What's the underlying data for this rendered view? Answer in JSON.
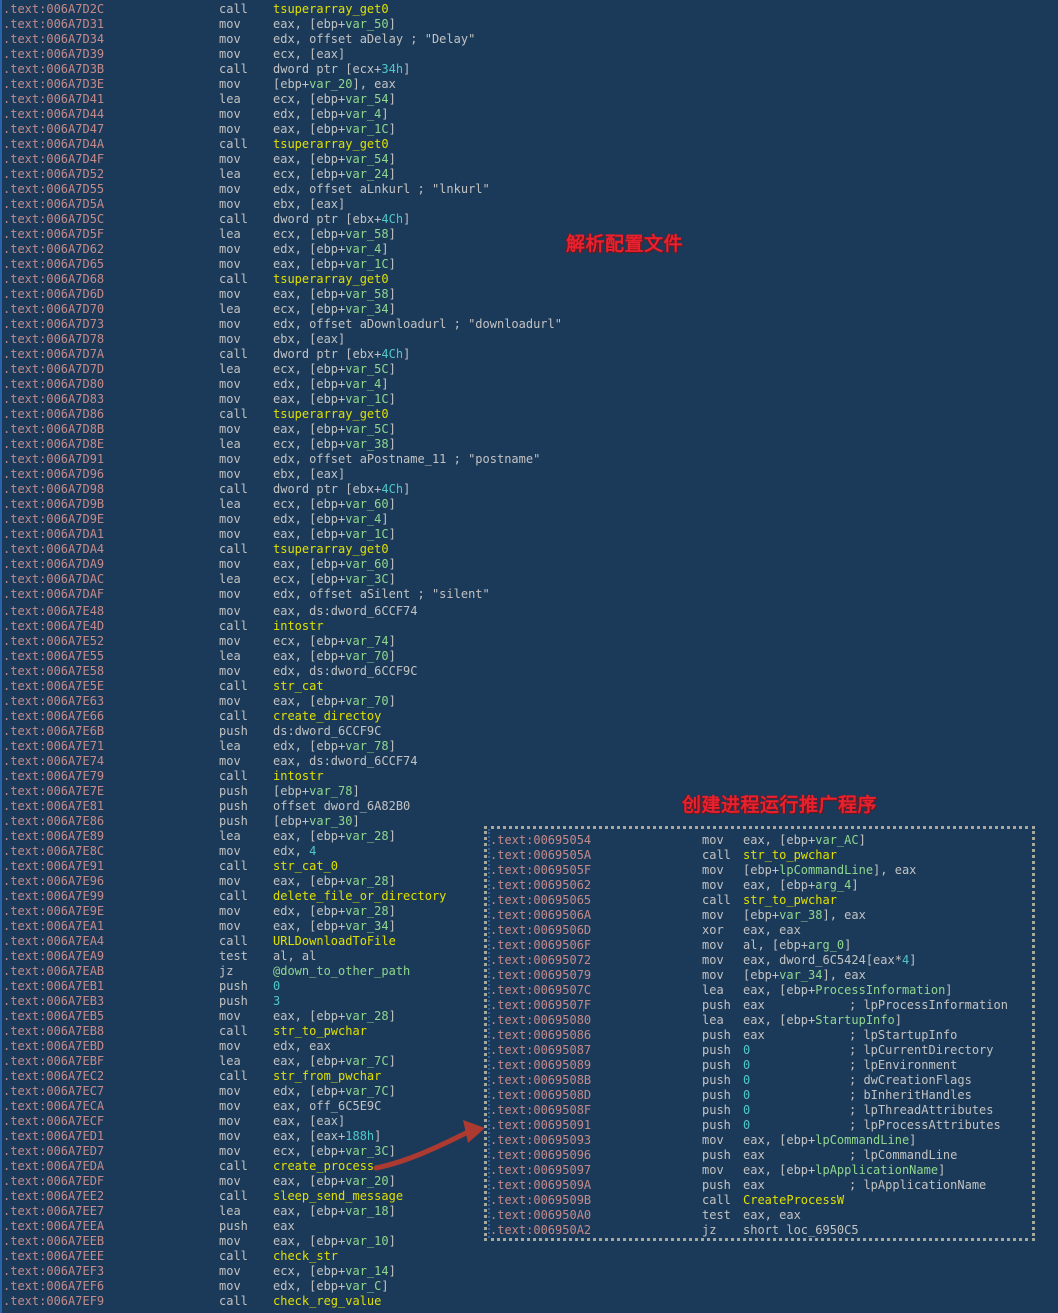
{
  "colors": {
    "background": "#1b3a59",
    "address": "#c48a8a",
    "default_text": "#c2c2c2",
    "var_green": "#8fd68f",
    "func_yellow": "#e0e000",
    "number_cyan": "#4fc8c8",
    "annotation_red": "#e8212e",
    "arrow_red": "#b43a2e",
    "margin_blue": "#2b6cb8",
    "inset_border": "#a8a89a"
  },
  "annotations": {
    "parse_config": "解析配置文件",
    "create_process": "创建进程运行推广程序"
  },
  "main_listing": {
    "rows": [
      {
        "a": ".text:006A7D2C",
        "m": "call",
        "o": "{y|tsuperarray_get0}"
      },
      {
        "a": ".text:006A7D31",
        "m": "mov",
        "o": "eax, [ebp+{v|var_50}]"
      },
      {
        "a": ".text:006A7D34",
        "m": "mov",
        "o": "edx, offset aDelay ; \"Delay\""
      },
      {
        "a": ".text:006A7D39",
        "m": "mov",
        "o": "ecx, [eax]"
      },
      {
        "a": ".text:006A7D3B",
        "m": "call",
        "o": "dword ptr [ecx+{n|34h}]"
      },
      {
        "a": ".text:006A7D3E",
        "m": "mov",
        "o": "[ebp+{v|var_20}], eax"
      },
      {
        "a": ".text:006A7D41",
        "m": "lea",
        "o": "ecx, [ebp+{v|var_54}]"
      },
      {
        "a": ".text:006A7D44",
        "m": "mov",
        "o": "edx, [ebp+{v|var_4}]"
      },
      {
        "a": ".text:006A7D47",
        "m": "mov",
        "o": "eax, [ebp+{v|var_1C}]"
      },
      {
        "a": ".text:006A7D4A",
        "m": "call",
        "o": "{y|tsuperarray_get0}"
      },
      {
        "a": ".text:006A7D4F",
        "m": "mov",
        "o": "eax, [ebp+{v|var_54}]"
      },
      {
        "a": ".text:006A7D52",
        "m": "lea",
        "o": "ecx, [ebp+{v|var_24}]"
      },
      {
        "a": ".text:006A7D55",
        "m": "mov",
        "o": "edx, offset aLnkurl ; \"lnkurl\""
      },
      {
        "a": ".text:006A7D5A",
        "m": "mov",
        "o": "ebx, [eax]"
      },
      {
        "a": ".text:006A7D5C",
        "m": "call",
        "o": "dword ptr [ebx+{n|4Ch}]"
      },
      {
        "a": ".text:006A7D5F",
        "m": "lea",
        "o": "ecx, [ebp+{v|var_58}]"
      },
      {
        "a": ".text:006A7D62",
        "m": "mov",
        "o": "edx, [ebp+{v|var_4}]"
      },
      {
        "a": ".text:006A7D65",
        "m": "mov",
        "o": "eax, [ebp+{v|var_1C}]"
      },
      {
        "a": ".text:006A7D68",
        "m": "call",
        "o": "{y|tsuperarray_get0}"
      },
      {
        "a": ".text:006A7D6D",
        "m": "mov",
        "o": "eax, [ebp+{v|var_58}]"
      },
      {
        "a": ".text:006A7D70",
        "m": "lea",
        "o": "ecx, [ebp+{v|var_34}]"
      },
      {
        "a": ".text:006A7D73",
        "m": "mov",
        "o": "edx, offset aDownloadurl ; \"downloadurl\""
      },
      {
        "a": ".text:006A7D78",
        "m": "mov",
        "o": "ebx, [eax]"
      },
      {
        "a": ".text:006A7D7A",
        "m": "call",
        "o": "dword ptr [ebx+{n|4Ch}]"
      },
      {
        "a": ".text:006A7D7D",
        "m": "lea",
        "o": "ecx, [ebp+{v|var_5C}]"
      },
      {
        "a": ".text:006A7D80",
        "m": "mov",
        "o": "edx, [ebp+{v|var_4}]"
      },
      {
        "a": ".text:006A7D83",
        "m": "mov",
        "o": "eax, [ebp+{v|var_1C}]"
      },
      {
        "a": ".text:006A7D86",
        "m": "call",
        "o": "{y|tsuperarray_get0}"
      },
      {
        "a": ".text:006A7D8B",
        "m": "mov",
        "o": "eax, [ebp+{v|var_5C}]"
      },
      {
        "a": ".text:006A7D8E",
        "m": "lea",
        "o": "ecx, [ebp+{v|var_38}]"
      },
      {
        "a": ".text:006A7D91",
        "m": "mov",
        "o": "edx, offset aPostname_11 ; \"postname\""
      },
      {
        "a": ".text:006A7D96",
        "m": "mov",
        "o": "ebx, [eax]"
      },
      {
        "a": ".text:006A7D98",
        "m": "call",
        "o": "dword ptr [ebx+{n|4Ch}]"
      },
      {
        "a": ".text:006A7D9B",
        "m": "lea",
        "o": "ecx, [ebp+{v|var_60}]"
      },
      {
        "a": ".text:006A7D9E",
        "m": "mov",
        "o": "edx, [ebp+{v|var_4}]"
      },
      {
        "a": ".text:006A7DA1",
        "m": "mov",
        "o": "eax, [ebp+{v|var_1C}]"
      },
      {
        "a": ".text:006A7DA4",
        "m": "call",
        "o": "{y|tsuperarray_get0}"
      },
      {
        "a": ".text:006A7DA9",
        "m": "mov",
        "o": "eax, [ebp+{v|var_60}]"
      },
      {
        "a": ".text:006A7DAC",
        "m": "lea",
        "o": "ecx, [ebp+{v|var_3C}]"
      },
      {
        "a": ".text:006A7DAF",
        "m": "mov",
        "o": "edx, offset aSilent ; \"silent\""
      },
      {
        "gap": 2
      },
      {
        "a": ".text:006A7E48",
        "m": "mov",
        "o": "eax, ds:dword_6CCF74"
      },
      {
        "a": ".text:006A7E4D",
        "m": "call",
        "o": "{y|intostr}"
      },
      {
        "a": ".text:006A7E52",
        "m": "mov",
        "o": "ecx, [ebp+{v|var_74}]"
      },
      {
        "a": ".text:006A7E55",
        "m": "lea",
        "o": "eax, [ebp+{v|var_70}]"
      },
      {
        "a": ".text:006A7E58",
        "m": "mov",
        "o": "edx, ds:dword_6CCF9C"
      },
      {
        "a": ".text:006A7E5E",
        "m": "call",
        "o": "{y|str_cat}"
      },
      {
        "a": ".text:006A7E63",
        "m": "mov",
        "o": "eax, [ebp+{v|var_70}]"
      },
      {
        "a": ".text:006A7E66",
        "m": "call",
        "o": "{y|create_directoy}"
      },
      {
        "a": ".text:006A7E6B",
        "m": "push",
        "o": "ds:dword_6CCF9C"
      },
      {
        "a": ".text:006A7E71",
        "m": "lea",
        "o": "edx, [ebp+{v|var_78}]"
      },
      {
        "a": ".text:006A7E74",
        "m": "mov",
        "o": "eax, ds:dword_6CCF74"
      },
      {
        "a": ".text:006A7E79",
        "m": "call",
        "o": "{y|intostr}"
      },
      {
        "a": ".text:006A7E7E",
        "m": "push",
        "o": "[ebp+{v|var_78}]"
      },
      {
        "a": ".text:006A7E81",
        "m": "push",
        "o": "offset dword_6A82B0"
      },
      {
        "a": ".text:006A7E86",
        "m": "push",
        "o": "[ebp+{v|var_30}]"
      },
      {
        "a": ".text:006A7E89",
        "m": "lea",
        "o": "eax, [ebp+{v|var_28}]"
      },
      {
        "a": ".text:006A7E8C",
        "m": "mov",
        "o": "edx, {n|4}"
      },
      {
        "a": ".text:006A7E91",
        "m": "call",
        "o": "{y|str_cat_0}"
      },
      {
        "a": ".text:006A7E96",
        "m": "mov",
        "o": "eax, [ebp+{v|var_28}]"
      },
      {
        "a": ".text:006A7E99",
        "m": "call",
        "o": "{y|delete_file_or_directory}"
      },
      {
        "a": ".text:006A7E9E",
        "m": "mov",
        "o": "edx, [ebp+{v|var_28}]"
      },
      {
        "a": ".text:006A7EA1",
        "m": "mov",
        "o": "eax, [ebp+{v|var_34}]"
      },
      {
        "a": ".text:006A7EA4",
        "m": "call",
        "o": "{y|URLDownloadToFile}"
      },
      {
        "a": ".text:006A7EA9",
        "m": "test",
        "o": "al, al"
      },
      {
        "a": ".text:006A7EAB",
        "m": "jz",
        "o": "{v|@down_to_other_path}"
      },
      {
        "a": ".text:006A7EB1",
        "m": "push",
        "o": "{n|0}"
      },
      {
        "a": ".text:006A7EB3",
        "m": "push",
        "o": "{n|3}"
      },
      {
        "a": ".text:006A7EB5",
        "m": "mov",
        "o": "eax, [ebp+{v|var_28}]"
      },
      {
        "a": ".text:006A7EB8",
        "m": "call",
        "o": "{y|str_to_pwchar}"
      },
      {
        "a": ".text:006A7EBD",
        "m": "mov",
        "o": "edx, eax"
      },
      {
        "a": ".text:006A7EBF",
        "m": "lea",
        "o": "eax, [ebp+{v|var_7C}]"
      },
      {
        "a": ".text:006A7EC2",
        "m": "call",
        "o": "{y|str_from_pwchar}"
      },
      {
        "a": ".text:006A7EC7",
        "m": "mov",
        "o": "edx, [ebp+{v|var_7C}]"
      },
      {
        "a": ".text:006A7ECA",
        "m": "mov",
        "o": "eax, off_6C5E9C"
      },
      {
        "a": ".text:006A7ECF",
        "m": "mov",
        "o": "eax, [eax]"
      },
      {
        "a": ".text:006A7ED1",
        "m": "mov",
        "o": "eax, [eax+{n|188h}]"
      },
      {
        "a": ".text:006A7ED7",
        "m": "mov",
        "o": "ecx, [ebp+{v|var_3C}]"
      },
      {
        "a": ".text:006A7EDA",
        "m": "call",
        "o": "{y|create_process}"
      },
      {
        "a": ".text:006A7EDF",
        "m": "mov",
        "o": "eax, [ebp+{v|var_20}]"
      },
      {
        "a": ".text:006A7EE2",
        "m": "call",
        "o": "{y|sleep_send_message}"
      },
      {
        "a": ".text:006A7EE7",
        "m": "lea",
        "o": "eax, [ebp+{v|var_18}]"
      },
      {
        "a": ".text:006A7EEA",
        "m": "push",
        "o": "eax"
      },
      {
        "a": ".text:006A7EEB",
        "m": "mov",
        "o": "eax, [ebp+{v|var_10}]"
      },
      {
        "a": ".text:006A7EEE",
        "m": "call",
        "o": "{y|check_str}"
      },
      {
        "a": ".text:006A7EF3",
        "m": "mov",
        "o": "ecx, [ebp+{v|var_14}]"
      },
      {
        "a": ".text:006A7EF6",
        "m": "mov",
        "o": "edx, [ebp+{v|var_C}]"
      },
      {
        "a": ".text:006A7EF9",
        "m": "call",
        "o": "{y|check_reg_value}"
      }
    ]
  },
  "inset_listing": {
    "rows": [
      {
        "a": ".text:00695054",
        "m": "mov",
        "o": "eax, [ebp+{v|var_AC}]"
      },
      {
        "a": ".text:0069505A",
        "m": "call",
        "o": "{y|str_to_pwchar}"
      },
      {
        "a": ".text:0069505F",
        "m": "mov",
        "o": "[ebp+{v|lpCommandLine}], eax"
      },
      {
        "a": ".text:00695062",
        "m": "mov",
        "o": "eax, [ebp+{v|arg_4}]"
      },
      {
        "a": ".text:00695065",
        "m": "call",
        "o": "{y|str_to_pwchar}"
      },
      {
        "a": ".text:0069506A",
        "m": "mov",
        "o": "[ebp+{v|var_38}], eax"
      },
      {
        "a": ".text:0069506D",
        "m": "xor",
        "o": "eax, eax"
      },
      {
        "a": ".text:0069506F",
        "m": "mov",
        "o": "al, [ebp+{v|arg_0}]"
      },
      {
        "a": ".text:00695072",
        "m": "mov",
        "o": "eax, dword_6C5424[eax*{n|4}]"
      },
      {
        "a": ".text:00695079",
        "m": "mov",
        "o": "[ebp+{v|var_34}], eax"
      },
      {
        "a": ".text:0069507C",
        "m": "lea",
        "o": "eax, [ebp+{v|ProcessInformation}]"
      },
      {
        "a": ".text:0069507F",
        "m": "push",
        "o": "eax",
        "c": "; lpProcessInformation"
      },
      {
        "a": ".text:00695080",
        "m": "lea",
        "o": "eax, [ebp+{v|StartupInfo}]"
      },
      {
        "a": ".text:00695086",
        "m": "push",
        "o": "eax",
        "c": "; lpStartupInfo"
      },
      {
        "a": ".text:00695087",
        "m": "push",
        "o": "{n|0}",
        "c": "; lpCurrentDirectory"
      },
      {
        "a": ".text:00695089",
        "m": "push",
        "o": "{n|0}",
        "c": "; lpEnvironment"
      },
      {
        "a": ".text:0069508B",
        "m": "push",
        "o": "{n|0}",
        "c": "; dwCreationFlags"
      },
      {
        "a": ".text:0069508D",
        "m": "push",
        "o": "{n|0}",
        "c": "; bInheritHandles"
      },
      {
        "a": ".text:0069508F",
        "m": "push",
        "o": "{n|0}",
        "c": "; lpThreadAttributes"
      },
      {
        "a": ".text:00695091",
        "m": "push",
        "o": "{n|0}",
        "c": "; lpProcessAttributes"
      },
      {
        "a": ".text:00695093",
        "m": "mov",
        "o": "eax, [ebp+{v|lpCommandLine}]"
      },
      {
        "a": ".text:00695096",
        "m": "push",
        "o": "eax",
        "c": "; lpCommandLine"
      },
      {
        "a": ".text:00695097",
        "m": "mov",
        "o": "eax, [ebp+{v|lpApplicationName}]"
      },
      {
        "a": ".text:0069509A",
        "m": "push",
        "o": "eax",
        "c": "; lpApplicationName"
      },
      {
        "a": ".text:0069509B",
        "m": "call",
        "o": "{y|CreateProcessW}"
      },
      {
        "a": ".text:006950A0",
        "m": "test",
        "o": "eax, eax"
      },
      {
        "a": ".text:006950A2",
        "m": "jz",
        "o": "short loc_6950C5"
      }
    ]
  }
}
